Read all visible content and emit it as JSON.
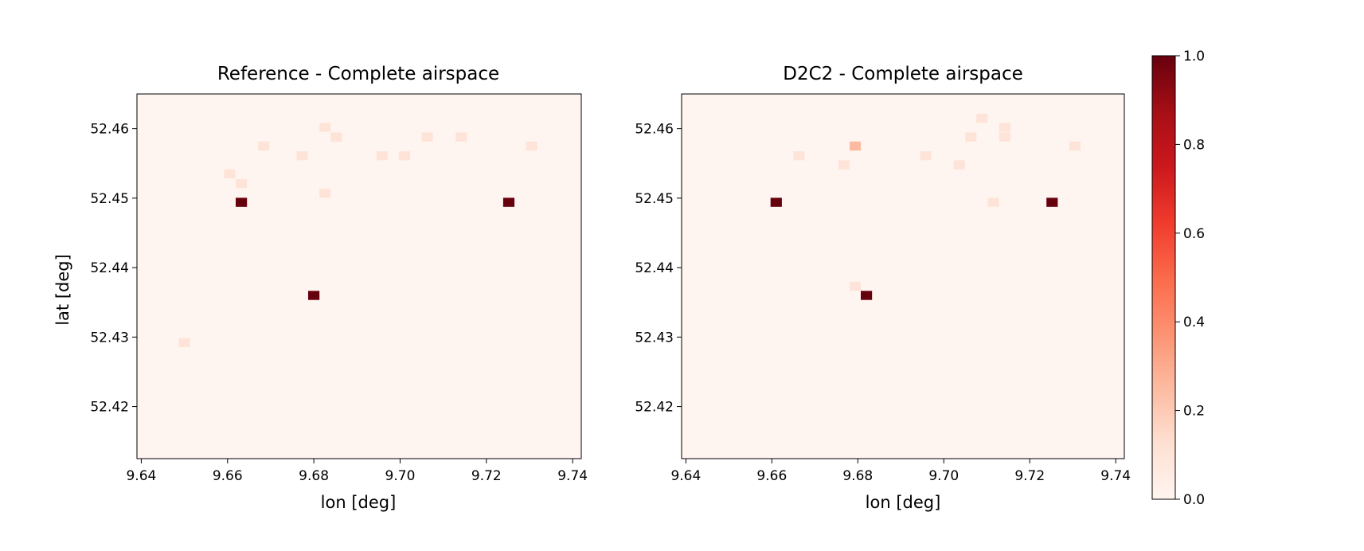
{
  "chart_data": [
    {
      "type": "heatmap",
      "title": "Reference - Complete airspace",
      "xlabel": "lon [deg]",
      "ylabel": "lat [deg]",
      "xlim": [
        9.639,
        9.742
      ],
      "ylim": [
        52.4125,
        52.465
      ],
      "xticks": [
        "9.64",
        "9.66",
        "9.68",
        "9.70",
        "9.72",
        "9.74"
      ],
      "yticks": [
        "52.42",
        "52.43",
        "52.44",
        "52.45",
        "52.46"
      ],
      "cell_size": {
        "lon": 0.00263,
        "lat": 0.00131
      },
      "cells": [
        {
          "lon": 9.65,
          "lat": 52.4292,
          "value": 0.1
        },
        {
          "lon": 9.6605,
          "lat": 52.4535,
          "value": 0.1
        },
        {
          "lon": 9.6632,
          "lat": 52.4521,
          "value": 0.1
        },
        {
          "lon": 9.6632,
          "lat": 52.4494,
          "value": 1.0
        },
        {
          "lon": 9.6684,
          "lat": 52.4575,
          "value": 0.1
        },
        {
          "lon": 9.6773,
          "lat": 52.4561,
          "value": 0.1
        },
        {
          "lon": 9.68,
          "lat": 52.436,
          "value": 1.0
        },
        {
          "lon": 9.6826,
          "lat": 52.4602,
          "value": 0.1
        },
        {
          "lon": 9.6826,
          "lat": 52.4507,
          "value": 0.1
        },
        {
          "lon": 9.6852,
          "lat": 52.4588,
          "value": 0.1
        },
        {
          "lon": 9.6958,
          "lat": 52.4561,
          "value": 0.1
        },
        {
          "lon": 9.701,
          "lat": 52.4561,
          "value": 0.1
        },
        {
          "lon": 9.7063,
          "lat": 52.4588,
          "value": 0.1
        },
        {
          "lon": 9.7142,
          "lat": 52.4588,
          "value": 0.1
        },
        {
          "lon": 9.7252,
          "lat": 52.4494,
          "value": 1.0
        },
        {
          "lon": 9.7305,
          "lat": 52.4575,
          "value": 0.1
        }
      ]
    },
    {
      "type": "heatmap",
      "title": "D2C2 - Complete airspace",
      "xlabel": "lon [deg]",
      "ylabel": "",
      "xlim": [
        9.639,
        9.742
      ],
      "ylim": [
        52.4125,
        52.465
      ],
      "xticks": [
        "9.64",
        "9.66",
        "9.68",
        "9.70",
        "9.72",
        "9.74"
      ],
      "yticks": [
        "52.42",
        "52.43",
        "52.44",
        "52.45",
        "52.46"
      ],
      "cell_size": {
        "lon": 0.00263,
        "lat": 0.00131
      },
      "cells": [
        {
          "lon": 9.661,
          "lat": 52.4494,
          "value": 1.0
        },
        {
          "lon": 9.6663,
          "lat": 52.4561,
          "value": 0.1
        },
        {
          "lon": 9.6768,
          "lat": 52.4548,
          "value": 0.1
        },
        {
          "lon": 9.6794,
          "lat": 52.4575,
          "value": 0.25
        },
        {
          "lon": 9.6794,
          "lat": 52.4373,
          "value": 0.1
        },
        {
          "lon": 9.682,
          "lat": 52.436,
          "value": 1.0
        },
        {
          "lon": 9.6958,
          "lat": 52.4561,
          "value": 0.1
        },
        {
          "lon": 9.7036,
          "lat": 52.4548,
          "value": 0.1
        },
        {
          "lon": 9.7063,
          "lat": 52.4588,
          "value": 0.1
        },
        {
          "lon": 9.7089,
          "lat": 52.4615,
          "value": 0.1
        },
        {
          "lon": 9.7115,
          "lat": 52.4494,
          "value": 0.1
        },
        {
          "lon": 9.7142,
          "lat": 52.4602,
          "value": 0.1
        },
        {
          "lon": 9.7142,
          "lat": 52.4588,
          "value": 0.1
        },
        {
          "lon": 9.7252,
          "lat": 52.4494,
          "value": 1.0
        },
        {
          "lon": 9.7305,
          "lat": 52.4575,
          "value": 0.1
        }
      ]
    }
  ],
  "colorbar": {
    "colormap": "Reds",
    "range": [
      0.0,
      1.0
    ],
    "ticks": [
      "0.0",
      "0.2",
      "0.4",
      "0.6",
      "0.8",
      "1.0"
    ],
    "stops": [
      "#fff5f0",
      "#fee0d2",
      "#fcbba1",
      "#fc9272",
      "#fb6a4a",
      "#ef3b2c",
      "#cb181d",
      "#a50f15",
      "#67000d"
    ]
  }
}
